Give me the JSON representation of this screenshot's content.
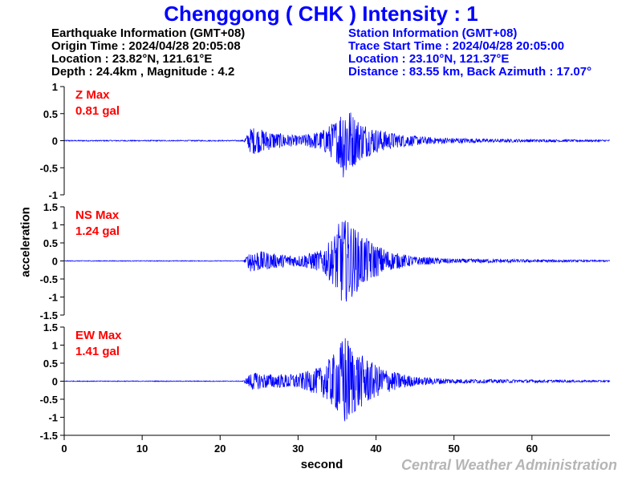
{
  "title": "Chenggong ( CHK ) Intensity : 1",
  "earthquake": {
    "header": "Earthquake Information (GMT+08)",
    "origin_time": "Origin Time : 2024/04/28 20:05:08",
    "location": "Location : 23.82°N, 121.61°E",
    "depth_magnitude": "Depth : 24.4km , Magnitude : 4.2"
  },
  "station": {
    "header": "Station Information (GMT+08)",
    "trace_start": "Trace Start Time : 2024/04/28 20:05:00",
    "location": "Location : 23.10°N, 121.37°E",
    "distance": "Distance : 83.55 km, Back Azimuth : 17.07°"
  },
  "credit": "Central Weather Administration",
  "colors": {
    "trace": "#0000ff",
    "label": "#ff0000",
    "title": "#0000ff"
  },
  "chart_data": {
    "type": "line",
    "xlabel": "second",
    "ylabel": "acceleration",
    "xlim": [
      0,
      70
    ],
    "xticks": [
      0,
      10,
      20,
      30,
      40,
      50,
      60
    ],
    "grid": false,
    "series": [
      {
        "name": "Z Max",
        "max_label": "0.81 gal",
        "ylim": [
          -1,
          1
        ],
        "yticks": [
          -1,
          -0.5,
          0,
          0.5,
          1
        ],
        "envelope": [
          [
            0,
            0.01
          ],
          [
            23,
            0.01
          ],
          [
            23.5,
            0.12
          ],
          [
            24,
            0.26
          ],
          [
            25,
            0.22
          ],
          [
            27,
            0.15
          ],
          [
            30,
            0.09
          ],
          [
            33,
            0.18
          ],
          [
            35,
            0.4
          ],
          [
            36,
            0.78
          ],
          [
            37,
            0.5
          ],
          [
            38,
            0.36
          ],
          [
            40,
            0.22
          ],
          [
            43,
            0.12
          ],
          [
            47,
            0.06
          ],
          [
            55,
            0.03
          ],
          [
            70,
            0.015
          ]
        ]
      },
      {
        "name": "NS Max",
        "max_label": "1.24 gal",
        "ylim": [
          -1.5,
          1.5
        ],
        "yticks": [
          -1.5,
          -1,
          -0.5,
          0,
          0.5,
          1,
          1.5
        ],
        "envelope": [
          [
            0,
            0.01
          ],
          [
            23,
            0.01
          ],
          [
            23.5,
            0.15
          ],
          [
            24,
            0.33
          ],
          [
            25,
            0.28
          ],
          [
            27,
            0.2
          ],
          [
            30,
            0.15
          ],
          [
            33,
            0.3
          ],
          [
            34.5,
            0.65
          ],
          [
            35.5,
            1.2
          ],
          [
            36.5,
            1.1
          ],
          [
            38,
            0.75
          ],
          [
            40,
            0.45
          ],
          [
            42,
            0.25
          ],
          [
            45,
            0.12
          ],
          [
            50,
            0.06
          ],
          [
            70,
            0.02
          ]
        ]
      },
      {
        "name": "EW Max",
        "max_label": "1.41 gal",
        "ylim": [
          -1.5,
          1.5
        ],
        "yticks": [
          -1.5,
          -1,
          -0.5,
          0,
          0.5,
          1,
          1.5
        ],
        "envelope": [
          [
            0,
            0.01
          ],
          [
            23,
            0.01
          ],
          [
            23.5,
            0.12
          ],
          [
            24,
            0.25
          ],
          [
            25,
            0.22
          ],
          [
            27,
            0.18
          ],
          [
            30,
            0.2
          ],
          [
            33,
            0.4
          ],
          [
            35,
            0.85
          ],
          [
            36,
            1.35
          ],
          [
            37,
            0.95
          ],
          [
            38,
            0.75
          ],
          [
            40,
            0.45
          ],
          [
            42,
            0.28
          ],
          [
            45,
            0.12
          ],
          [
            50,
            0.06
          ],
          [
            70,
            0.02
          ]
        ]
      }
    ]
  }
}
